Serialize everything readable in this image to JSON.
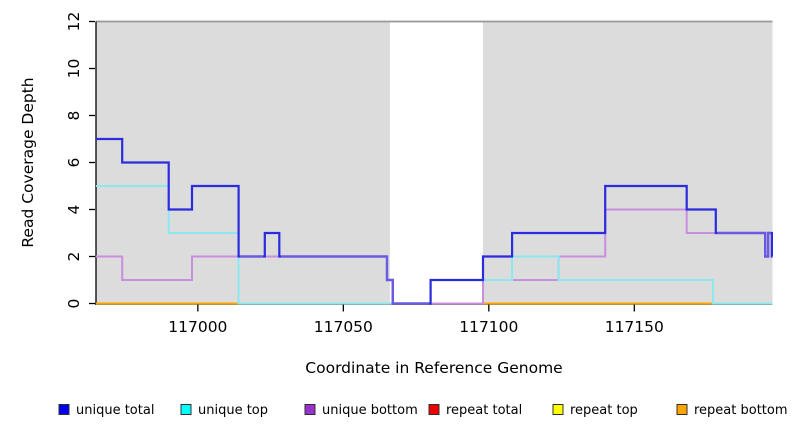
{
  "chart_data": {
    "type": "line",
    "variant": "step-coverage",
    "title": "",
    "xlabel": "Coordinate in Reference Genome",
    "ylabel": "Read Coverage Depth",
    "xlim": [
      116965,
      117197.5
    ],
    "ylim": [
      0,
      12
    ],
    "xticks": [
      "117000",
      "117050",
      "117100",
      "117150"
    ],
    "xtick_values": [
      117000,
      117050,
      117100,
      117150
    ],
    "yticks": [
      "0",
      "2",
      "4",
      "6",
      "8",
      "10",
      "12"
    ],
    "ytick_values": [
      0,
      2,
      4,
      6,
      8,
      10,
      12
    ],
    "grid": false,
    "legend_position": "bottom",
    "plot_bg_color": "#dcdcdc",
    "uncovered_band": {
      "x1": 117066,
      "x2": 117098,
      "color": "#ffffff"
    },
    "top_border": {
      "y": 12,
      "color": "#9a9a9a"
    },
    "overlap_line_color": "#6a5be2",
    "series": [
      {
        "name": "unique total",
        "legend_color": "#0000ee",
        "line_color": "#2b2be0",
        "width": 2.2,
        "start": 7,
        "steps": [
          [
            116974,
            6
          ],
          [
            116990,
            4
          ],
          [
            116998,
            5
          ],
          [
            117014,
            2
          ],
          [
            117023,
            3
          ],
          [
            117028,
            2
          ],
          [
            117065,
            1
          ],
          [
            117067,
            0
          ],
          [
            117080,
            1
          ],
          [
            117098,
            2
          ],
          [
            117108,
            3
          ],
          [
            117140,
            5
          ],
          [
            117168,
            4
          ],
          [
            117178,
            3
          ],
          [
            117195,
            2
          ],
          [
            117196,
            3
          ],
          [
            117197.3,
            2
          ]
        ]
      },
      {
        "name": "unique top",
        "legend_color": "#00ffff",
        "line_color": "#8ce8ef",
        "width": 2,
        "start": 5,
        "steps": [
          [
            116990,
            3
          ],
          [
            117014,
            0
          ],
          [
            117080,
            1
          ],
          [
            117108,
            2
          ],
          [
            117124,
            1
          ],
          [
            117177,
            0
          ]
        ]
      },
      {
        "name": "unique bottom",
        "legend_color": "#9932cc",
        "line_color": "#c98fdf",
        "width": 2,
        "start": 2,
        "steps": [
          [
            116974,
            1
          ],
          [
            116998,
            2
          ],
          [
            117065,
            1
          ],
          [
            117067,
            0
          ],
          [
            117098,
            1
          ],
          [
            117124,
            2
          ],
          [
            117140,
            4
          ],
          [
            117168,
            3
          ],
          [
            117195,
            2
          ],
          [
            117196,
            3
          ],
          [
            117197.3,
            2
          ]
        ]
      },
      {
        "name": "repeat total",
        "legend_color": "#ee0000",
        "line_color": "#c4556a",
        "width": 2,
        "start": 0,
        "steps": []
      },
      {
        "name": "repeat top",
        "legend_color": "#ffff00",
        "line_color": "#ffff00",
        "width": 2,
        "start": 0,
        "steps": []
      },
      {
        "name": "repeat bottom",
        "legend_color": "#ffa500",
        "line_color": "#ffa500",
        "width": 2,
        "start": 0,
        "steps": []
      }
    ],
    "baseline_overrides": [
      {
        "x1": 117014,
        "x2": 117066,
        "color": "#9fd9a6"
      },
      {
        "x1": 117080,
        "x2": 117098,
        "color": "#c4556a"
      },
      {
        "x1": 117177,
        "x2": 117197.5,
        "color": "#9fd9a6"
      }
    ]
  },
  "legend": {
    "items": [
      {
        "label": "unique total",
        "color": "#0000ee"
      },
      {
        "label": "unique top",
        "color": "#00ffff"
      },
      {
        "label": "unique bottom",
        "color": "#9932cc"
      },
      {
        "label": "repeat total",
        "color": "#ee0000"
      },
      {
        "label": "repeat top",
        "color": "#ffff00"
      },
      {
        "label": "repeat bottom",
        "color": "#ffa500"
      }
    ]
  }
}
